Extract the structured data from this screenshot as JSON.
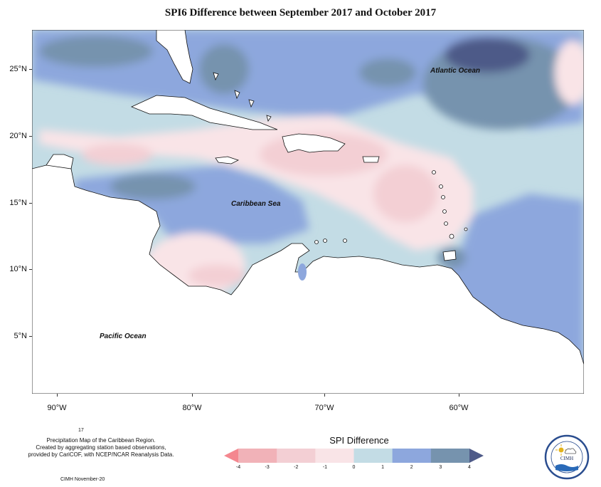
{
  "title": "SPI6 Difference between September 2017 and October 2017",
  "map": {
    "lat_labels": [
      "25°N",
      "20°N",
      "15°N",
      "10°N",
      "5°N"
    ],
    "lon_labels": [
      "90°W",
      "80°W",
      "70°W",
      "60°W"
    ],
    "ocean_labels": {
      "atlantic": "Atlantic Ocean",
      "caribbean": "Caribbean Sea",
      "pacific": "Pacific Ocean"
    },
    "colors": {
      "spi_-4": "#f4878f",
      "spi_-3": "#f1b2b8",
      "spi_-2": "#f3cfd4",
      "spi_-1": "#f9e4e7",
      "spi_0": "#c3dce5",
      "spi_1": "#8da7dd",
      "spi_2": "#7693ae",
      "spi_3": "#4e5a88",
      "spi_4": "#3d3b7d",
      "land": "#ffffff"
    }
  },
  "legend": {
    "title": "SPI Difference",
    "ticks": [
      "-4",
      "-3",
      "-2",
      "-1",
      "0",
      "1",
      "2",
      "3",
      "4"
    ],
    "colors": [
      "#f4878f",
      "#f1b2b8",
      "#f3cfd4",
      "#f9e4e7",
      "#c3dce5",
      "#8da7dd",
      "#7693ae",
      "#4e5a88"
    ]
  },
  "footer": {
    "number": "17",
    "credit_lines": [
      "Precipitation Map of the Caribbean Region.",
      "Created by aggregating station based observations,",
      "provided by CariCOF, with NCEP/NCAR Reanalysis Data."
    ],
    "date": "CIMH November-20"
  },
  "logo": {
    "label": "CIMH"
  }
}
